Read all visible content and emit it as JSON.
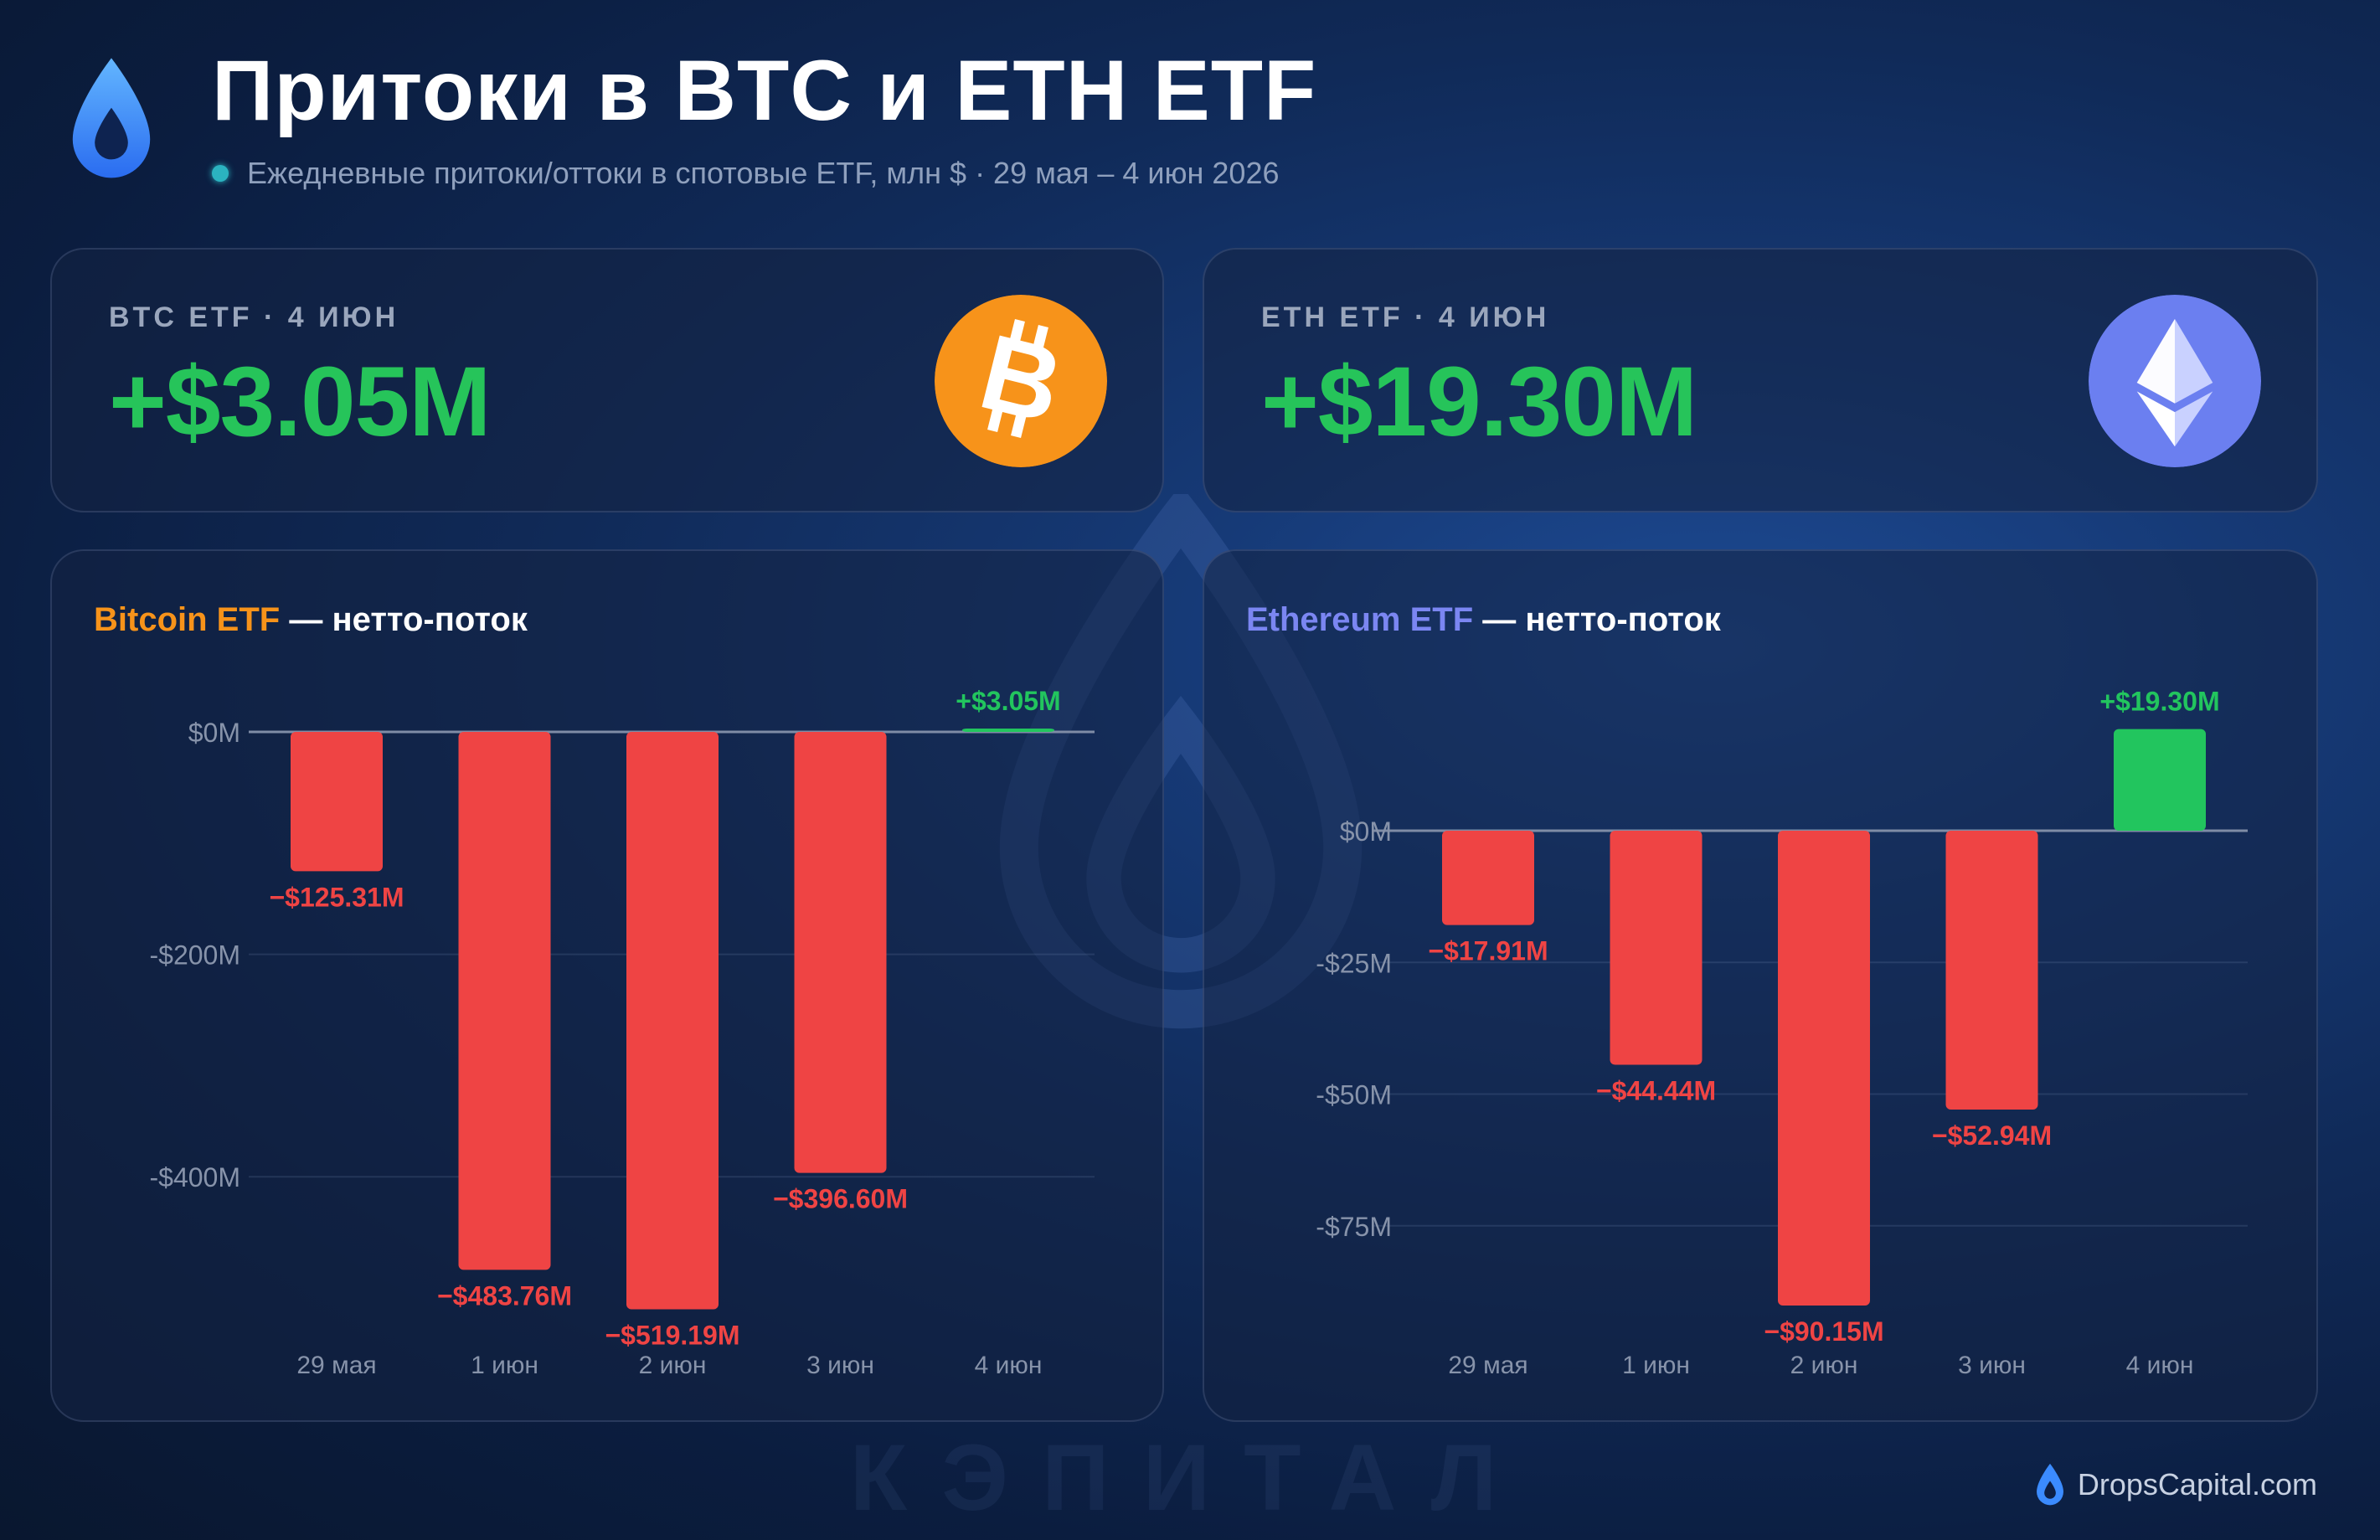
{
  "header": {
    "title": "Притоки в BTC и ETH ETF",
    "subtitle": "Ежедневные притоки/оттоки в спотовые ETF, млн $ · 29 мая – 4 июн 2026"
  },
  "stats": {
    "btc": {
      "label": "BTC ETF · 4 ИЮН",
      "value": "+$3.05M"
    },
    "eth": {
      "label": "ETH ETF · 4 ИЮН",
      "value": "+$19.30M"
    }
  },
  "charts": {
    "btc": {
      "title_accent": "Bitcoin ETF",
      "title_rest": " — нетто-поток"
    },
    "eth": {
      "title_accent": "Ethereum ETF",
      "title_rest": " — нетто-поток"
    }
  },
  "colors": {
    "positive": "#22c55e",
    "negative": "#ef4444",
    "btc_accent": "#f7931a",
    "eth_accent": "#7b86f2",
    "value_green": "#26c45a"
  },
  "icons": {
    "logo": "drop-icon",
    "btc": "bitcoin-icon",
    "eth": "ethereum-icon"
  },
  "watermark": "КЭПИТАЛ",
  "brand": "DropsCapital.com",
  "chart_data": [
    {
      "type": "bar",
      "title": "Bitcoin ETF — нетто-поток",
      "categories": [
        "29 мая",
        "1 июн",
        "2 июн",
        "3 июн",
        "4 июн"
      ],
      "values": [
        -125.31,
        -483.76,
        -519.19,
        -396.6,
        3.05
      ],
      "data_labels": [
        "−$125.31M",
        "−$483.76M",
        "−$519.19M",
        "−$396.60M",
        "+$3.05M"
      ],
      "y_ticks": [
        0,
        -200,
        -400
      ],
      "y_tick_labels": [
        "$0M",
        "-$200M",
        "-$400M"
      ],
      "ylim": [
        -540,
        10
      ],
      "grid": true
    },
    {
      "type": "bar",
      "title": "Ethereum ETF — нетто-поток",
      "categories": [
        "29 мая",
        "1 июн",
        "2 июн",
        "3 июн",
        "4 июн"
      ],
      "values": [
        -17.91,
        -44.44,
        -90.15,
        -52.94,
        19.3
      ],
      "data_labels": [
        "−$17.91M",
        "−$44.44M",
        "−$90.15M",
        "−$52.94M",
        "+$19.30M"
      ],
      "y_ticks": [
        0,
        -25,
        -50,
        -75
      ],
      "y_tick_labels": [
        "$0M",
        "-$25M",
        "-$50M",
        "-$75M"
      ],
      "ylim": [
        -92,
        20
      ],
      "grid": true
    }
  ]
}
